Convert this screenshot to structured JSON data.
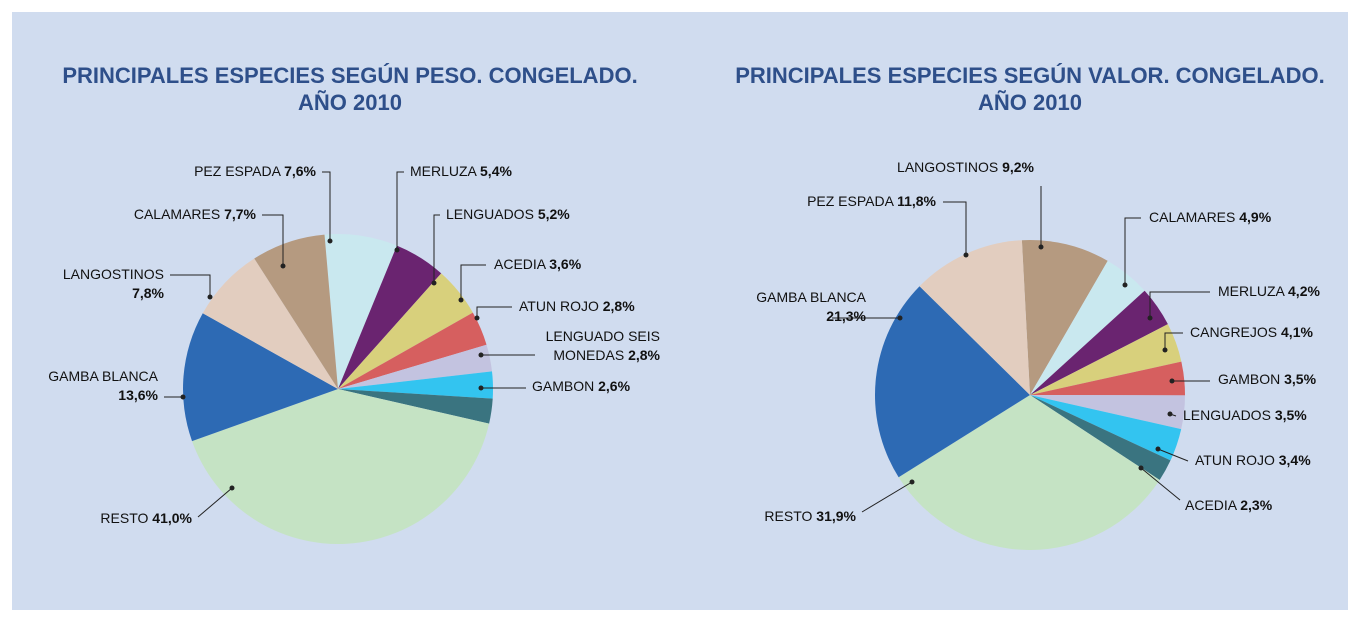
{
  "chart_data": [
    {
      "type": "pie",
      "title": "PRINCIPALES ESPECIES SEGÚN PESO. CONGELADO. AÑO 2010",
      "categories": [
        "PEZ ESPADA",
        "MERLUZA",
        "LENGUADOS",
        "ACEDIA",
        "ATUN ROJO",
        "LENGUADO SEIS MONEDAS",
        "GAMBON",
        "RESTO",
        "GAMBA BLANCA",
        "LANGOSTINOS",
        "CALAMARES"
      ],
      "values": [
        7.6,
        5.4,
        5.2,
        3.6,
        2.8,
        2.8,
        2.6,
        41.0,
        13.6,
        7.8,
        7.7
      ],
      "value_labels": [
        "7,6%",
        "5,4%",
        "5,2%",
        "3,6%",
        "2,8%",
        "2,8%",
        "2,6%",
        "41,0%",
        "13,6%",
        "7,8%",
        "7,7%"
      ],
      "colors": [
        "#c9e8ef",
        "#6a2470",
        "#d8d07c",
        "#d65f5f",
        "#c3c3e0",
        "#33c4f0",
        "#3a7480",
        "#c5e3c4",
        "#2d6ab4",
        "#e2cdbf",
        "#b59a80"
      ]
    },
    {
      "type": "pie",
      "title": "PRINCIPALES ESPECIES SEGÚN VALOR. CONGELADO. AÑO 2010",
      "categories": [
        "LANGOSTINOS",
        "CALAMARES",
        "MERLUZA",
        "CANGREJOS",
        "GAMBON",
        "LENGUADOS",
        "ATUN ROJO",
        "ACEDIA",
        "RESTO",
        "GAMBA BLANCA",
        "PEZ ESPADA"
      ],
      "values": [
        9.2,
        4.9,
        4.2,
        4.1,
        3.5,
        3.5,
        3.4,
        2.3,
        31.9,
        21.3,
        11.8
      ],
      "value_labels": [
        "9,2%",
        "4,9%",
        "4,2%",
        "4,1%",
        "3,5%",
        "3,5%",
        "3,4%",
        "2,3%",
        "31,9%",
        "21,3%",
        "11,8%"
      ],
      "colors": [
        "#b59a80",
        "#c9e8ef",
        "#6a2470",
        "#d8d07c",
        "#d65f5f",
        "#c3c3e0",
        "#33c4f0",
        "#3a7480",
        "#c5e3c4",
        "#2d6ab4",
        "#e2cdbf"
      ]
    }
  ]
}
